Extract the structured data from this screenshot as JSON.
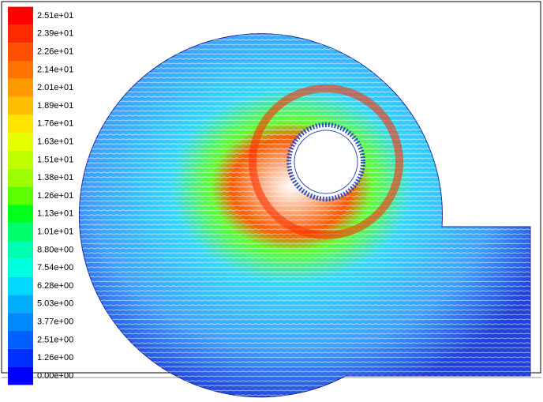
{
  "legend": {
    "levels": [
      {
        "label": "2.51e+01",
        "color": "#ff0000"
      },
      {
        "label": "2.39e+01",
        "color": "#ff2a00"
      },
      {
        "label": "2.26e+01",
        "color": "#ff4f00"
      },
      {
        "label": "2.14e+01",
        "color": "#ff7400"
      },
      {
        "label": "2.01e+01",
        "color": "#ff9a00"
      },
      {
        "label": "1.89e+01",
        "color": "#ffbf00"
      },
      {
        "label": "1.76e+01",
        "color": "#ffe400"
      },
      {
        "label": "1.63e+01",
        "color": "#e6ff00"
      },
      {
        "label": "1.51e+01",
        "color": "#c0ff00"
      },
      {
        "label": "1.38e+01",
        "color": "#9aff00"
      },
      {
        "label": "1.26e+01",
        "color": "#5cff00"
      },
      {
        "label": "1.13e+01",
        "color": "#00ff1a"
      },
      {
        "label": "1.01e+01",
        "color": "#00ff6a"
      },
      {
        "label": "8.80e+00",
        "color": "#00ffb0"
      },
      {
        "label": "7.54e+00",
        "color": "#00ffe0"
      },
      {
        "label": "6.28e+00",
        "color": "#00d8ff"
      },
      {
        "label": "5.03e+00",
        "color": "#00aeff"
      },
      {
        "label": "3.77e+00",
        "color": "#0088ff"
      },
      {
        "label": "2.51e+00",
        "color": "#0060ff"
      },
      {
        "label": "1.26e+00",
        "color": "#0030ff"
      },
      {
        "label": "0.00e+00",
        "color": "#0000ff"
      }
    ]
  }
}
